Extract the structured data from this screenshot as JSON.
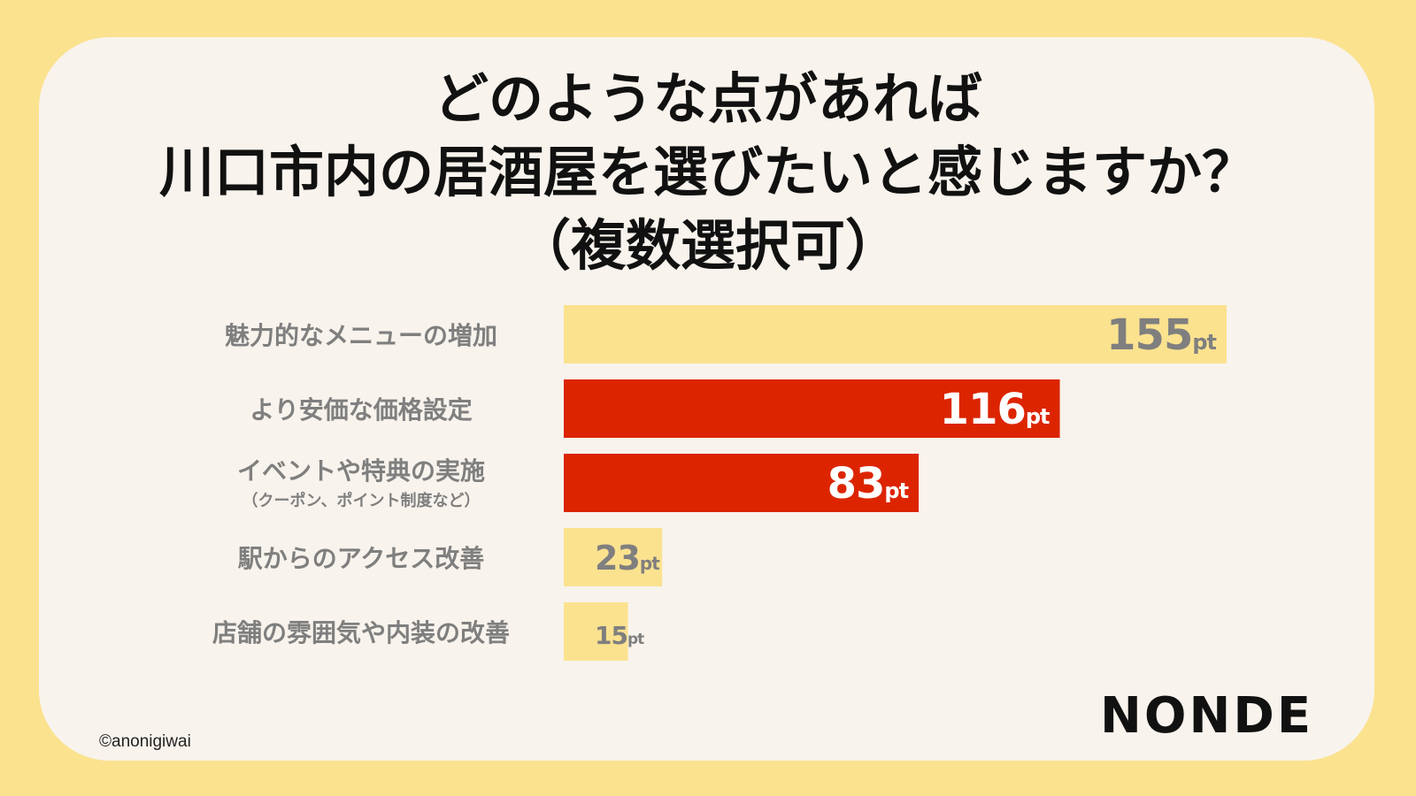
{
  "title": {
    "line1": "どのような点があれば",
    "line2": "川口市内の居酒屋を選びたいと感じますか？",
    "line3": "（複数選択可）"
  },
  "chart_data": {
    "type": "bar",
    "orientation": "horizontal",
    "categories": [
      "魅力的なメニューの増加",
      "より安価な価格設定",
      "イベントや特典の実施",
      "駅からのアクセス改善",
      "店舗の雰囲気や内装の改善"
    ],
    "category_notes": [
      "",
      "",
      "（クーポン、ポイント制度など）",
      "",
      ""
    ],
    "values": [
      155,
      116,
      83,
      23,
      15
    ],
    "unit": "pt",
    "highlight": [
      false,
      true,
      true,
      false,
      false
    ],
    "colors": {
      "normal_bar": "#fbe28f",
      "highlight_bar": "#dc2500",
      "normal_value_text": "#7f7f7f",
      "highlight_value_text": "#ffffff",
      "label_text": "#7f7f7f"
    },
    "xlim": [
      0,
      155
    ]
  },
  "footer": {
    "copyright": "©anonigiwai",
    "logo": "NONDE"
  }
}
